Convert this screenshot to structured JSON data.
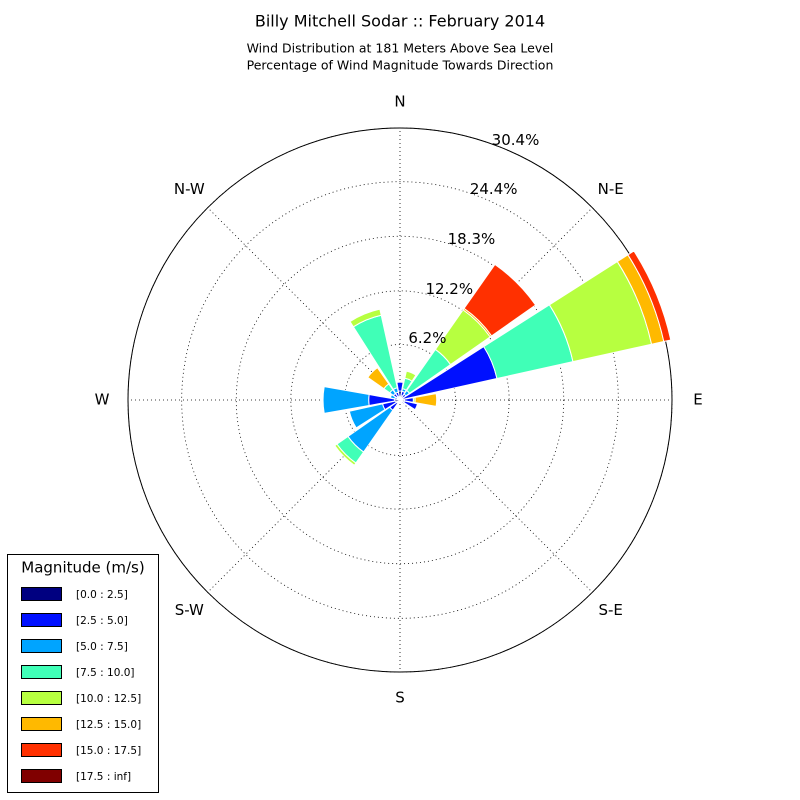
{
  "chart_data": {
    "type": "windrose",
    "title": "Billy Mitchell Sodar :: February 2014",
    "subtitle": [
      "Wind Distribution at 181 Meters Above Sea Level",
      "Percentage of Wind Magnitude Towards Direction"
    ],
    "categories": [
      "N",
      null,
      "N-E",
      null,
      "E",
      null,
      "S-E",
      null,
      "S",
      null,
      "S-W",
      null,
      "W",
      null,
      "N-W",
      null
    ],
    "rlim": [
      0,
      30.4
    ],
    "rticks": [
      {
        "value": 6.2,
        "label": "6.2%"
      },
      {
        "value": 12.2,
        "label": "12.2%"
      },
      {
        "value": 18.3,
        "label": "18.3%"
      },
      {
        "value": 24.4,
        "label": "24.4%"
      },
      {
        "value": 30.4,
        "label": "30.4%"
      }
    ],
    "grid": true,
    "legend_title": "Magnitude (m/s)",
    "legend_position": "lower left",
    "series": [
      {
        "name": "[0.0 : 2.5]",
        "color": "#000080",
        "values": [
          1.0,
          0.5,
          0.3,
          0.3,
          0.5,
          0.5,
          0.3,
          0.2,
          0.2,
          0.2,
          0.4,
          0.5,
          0.6,
          0.3,
          0.4,
          0.4
        ]
      },
      {
        "name": "[2.5 : 5.0]",
        "color": "#0010ff",
        "values": [
          1.0,
          0.5,
          0.5,
          10.8,
          1.0,
          1.5,
          0.2,
          0.1,
          0,
          0.1,
          1.0,
          1.5,
          2.9,
          0.3,
          0.5,
          0.5
        ]
      },
      {
        "name": "[5.0 : 7.5]",
        "color": "#00a4ff",
        "values": [
          0,
          0.3,
          0.5,
          0,
          0,
          0,
          0,
          0,
          0,
          0,
          5.7,
          3.8,
          5.1,
          0.5,
          0.5,
          0.5
        ]
      },
      {
        "name": "[7.5 : 10.0]",
        "color": "#40ffb7",
        "values": [
          0,
          1.2,
          5.6,
          8.7,
          0,
          0,
          0,
          0,
          0,
          0,
          1.5,
          0,
          0,
          0,
          0.8,
          8.3
        ]
      },
      {
        "name": "[10.0 : 12.5]",
        "color": "#b7ff40",
        "values": [
          0,
          0.8,
          5.4,
          9.0,
          0.2,
          0,
          0,
          0,
          0,
          0,
          0.3,
          0,
          0,
          0,
          0,
          0.7
        ]
      },
      {
        "name": "[12.5 : 15.0]",
        "color": "#ffb900",
        "values": [
          0,
          0,
          0.2,
          1.4,
          2.4,
          0,
          0,
          0,
          0,
          0,
          0,
          0,
          0,
          0,
          2.2,
          0
        ]
      },
      {
        "name": "[15.0 : 17.5]",
        "color": "#ff3000",
        "values": [
          0,
          0,
          6.0,
          0.8,
          0,
          0,
          0,
          0,
          0,
          0,
          0,
          0,
          0,
          0,
          0,
          0
        ]
      },
      {
        "name": "[17.5 : inf]",
        "color": "#800000",
        "values": [
          0,
          0,
          0,
          0,
          0,
          0,
          0,
          0,
          0,
          0,
          0,
          0,
          0,
          0,
          0,
          0
        ]
      }
    ]
  }
}
